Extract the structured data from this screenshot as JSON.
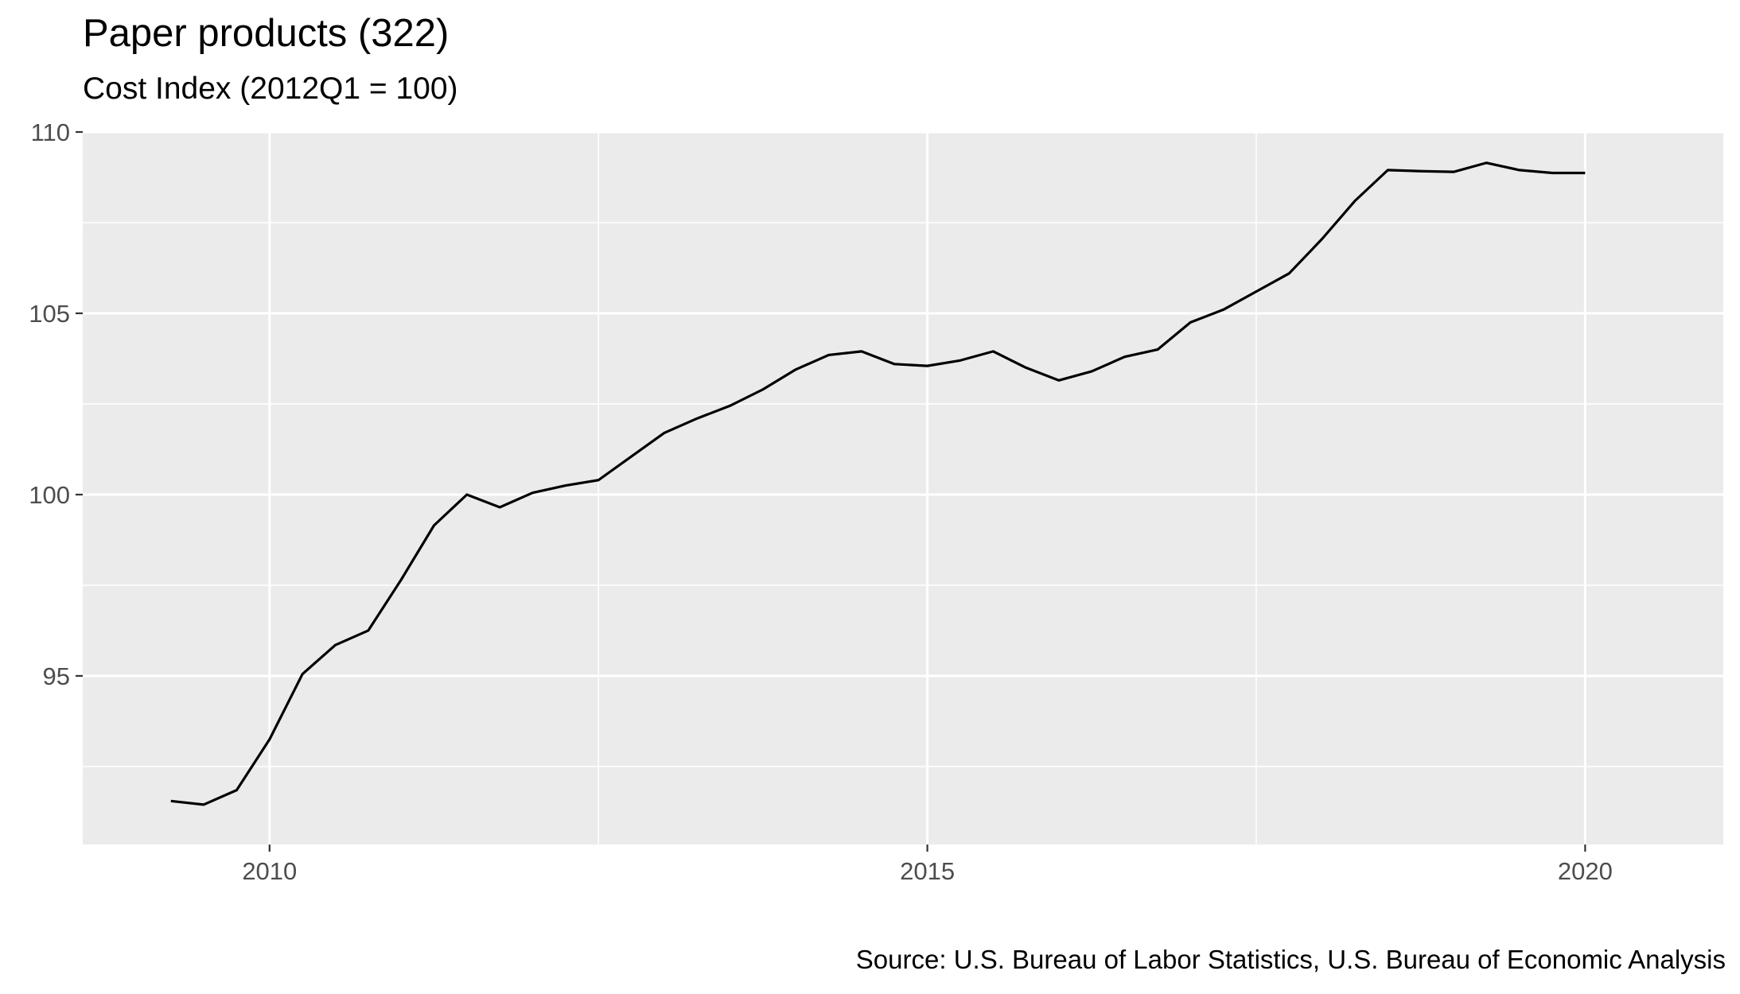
{
  "chart_data": {
    "type": "line",
    "title": "Paper products (322)",
    "subtitle": "Cost Index (2012Q1 = 100)",
    "caption": "Source: U.S. Bureau of Labor Statistics, U.S. Bureau of Economic Analysis",
    "xlabel": "",
    "ylabel": "",
    "xlim": [
      2008.58,
      2021.05
    ],
    "ylim": [
      90.35,
      110
    ],
    "x_ticks": [
      2010,
      2015,
      2020
    ],
    "x_tick_labels": [
      "2010",
      "2015",
      "2020"
    ],
    "y_ticks": [
      95,
      100,
      105,
      110
    ],
    "y_tick_labels": [
      "95",
      "100",
      "105",
      "110"
    ],
    "grid": true,
    "legend": "none",
    "colors": {
      "panel": "#ebebeb",
      "grid": "#ffffff",
      "line": "#000000",
      "tick_text": "#4d4d4d"
    },
    "series": [
      {
        "x": [
          2009.25,
          2009.5,
          2009.75,
          2010.0,
          2010.25,
          2010.5,
          2010.75,
          2011.0,
          2011.25,
          2011.5,
          2011.75,
          2012.0,
          2012.25,
          2012.5,
          2012.75,
          2013.0,
          2013.25,
          2013.5,
          2013.75,
          2014.0,
          2014.25,
          2014.5,
          2014.75,
          2015.0,
          2015.25,
          2015.5,
          2015.75,
          2016.0,
          2016.25,
          2016.5,
          2016.75,
          2017.0,
          2017.25,
          2017.5,
          2017.75,
          2018.0,
          2018.25,
          2018.5,
          2018.75,
          2019.0,
          2019.25,
          2019.5,
          2019.75,
          2020.0
        ],
        "values": [
          91.55,
          91.45,
          91.85,
          93.25,
          95.05,
          95.85,
          96.25,
          97.65,
          99.15,
          100.0,
          99.65,
          100.05,
          100.25,
          100.4,
          101.05,
          101.7,
          102.1,
          102.45,
          102.9,
          103.45,
          103.85,
          103.95,
          103.6,
          103.55,
          103.7,
          103.95,
          103.5,
          103.15,
          103.4,
          103.8,
          104.0,
          104.75,
          105.1,
          105.6,
          106.1,
          107.05,
          108.1,
          108.95,
          108.92,
          108.9,
          109.15,
          108.95,
          108.87,
          108.87
        ]
      }
    ]
  }
}
